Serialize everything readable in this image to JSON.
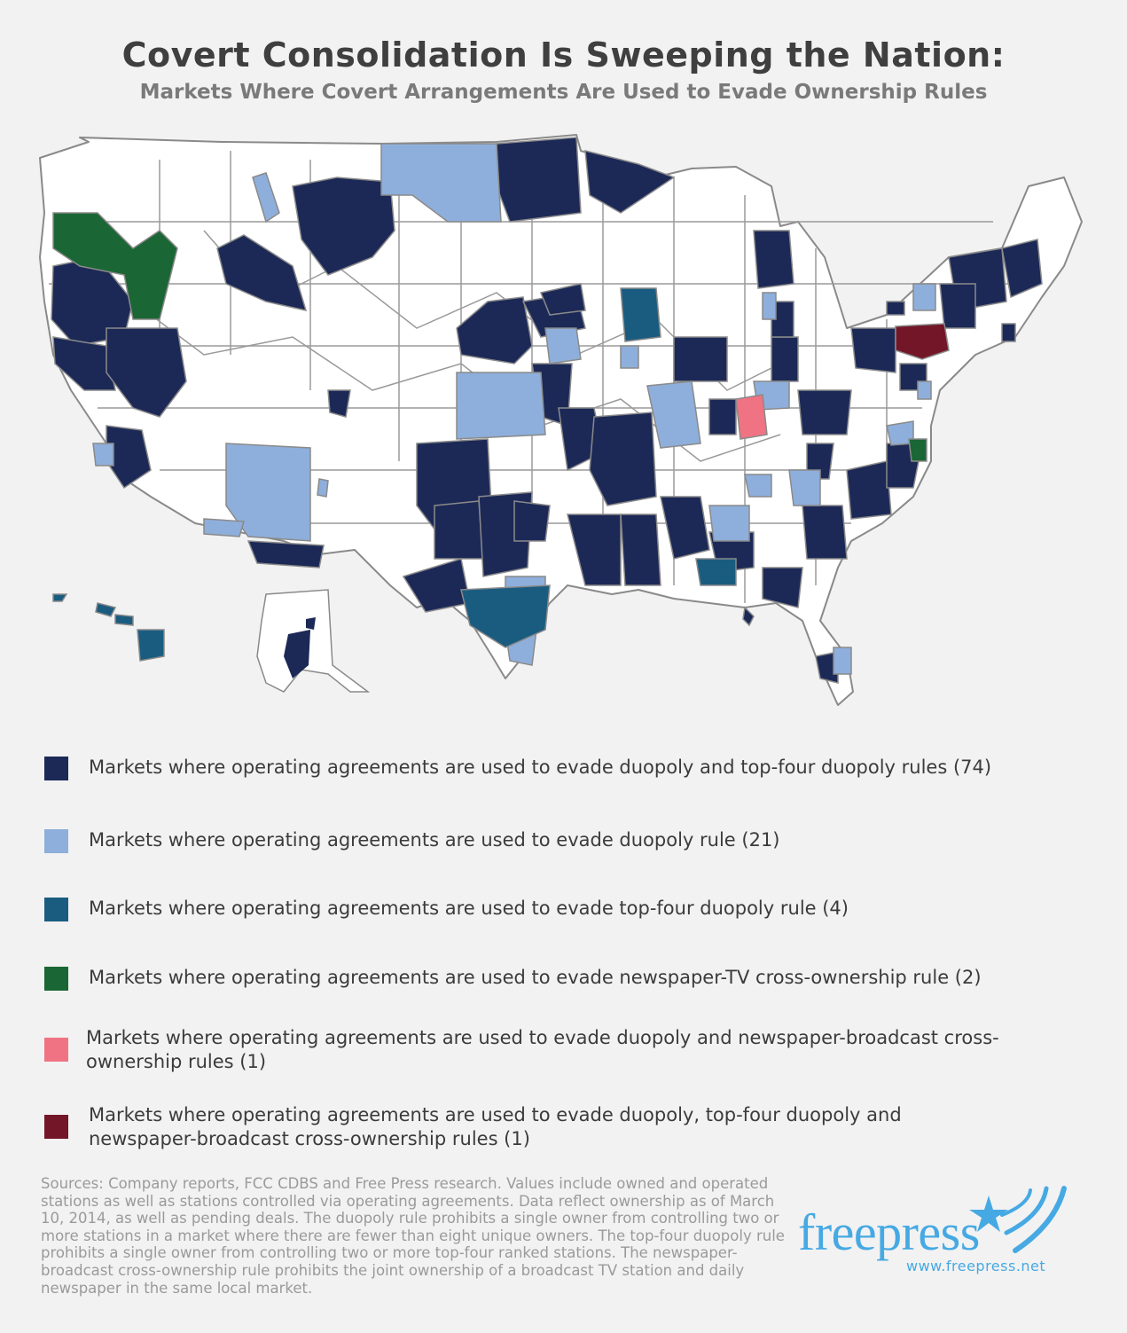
{
  "header": {
    "title": "Covert Consolidation Is Sweeping the Nation:",
    "subtitle": "Markets Where Covert Arrangements Are Used to Evade Ownership Rules"
  },
  "colors": {
    "duopoly_and_top_four": "#1c2957",
    "duopoly": "#8eafdb",
    "top_four": "#1a5c80",
    "newspaper_tv": "#1a6634",
    "duopoly_newspaper": "#ef7382",
    "all_three": "#731628",
    "unhighlighted": "#ffffff",
    "border": "#8a8a8a",
    "brand": "#46a9e3"
  },
  "legend": [
    {
      "label": "Markets where operating agreements are used to evade duopoly and top-four duopoly rules (74)",
      "color": "#1c2957"
    },
    {
      "label": "Markets where operating agreements are used to evade duopoly rule (21)",
      "color": "#8eafdb"
    },
    {
      "label": "Markets where operating agreements are used to evade top-four duopoly rule (4)",
      "color": "#1a5c80"
    },
    {
      "label": "Markets where operating agreements are used to evade newspaper-TV cross-ownership rule (2)",
      "color": "#1a6634"
    },
    {
      "label": "Markets where operating agreements are used to evade duopoly and newspaper-broadcast cross-ownership rules (1)",
      "color": "#ef7382"
    },
    {
      "label": "Markets where operating agreements are used to evade duopoly, top-four duopoly and newspaper-broadcast cross-ownership rules (1)",
      "color": "#731628"
    }
  ],
  "footer": {
    "sources": "Sources: Company reports, FCC CDBS and Free Press research. Values include owned and operated stations as well as stations controlled via operating agreements. Data reflect ownership as of March 10, 2014, as well as pending deals. The duopoly rule prohibits a single owner from controlling two or more stations in a market where there are fewer than eight unique owners. The top-four duopoly rule prohibits a single owner from controlling two or more top-four ranked stations. The newspaper-broadcast cross-ownership rule prohibits the joint ownership of a broadcast TV station and daily newspaper in the same local market.",
    "logo_text": "freepress",
    "logo_url": "www.freepress.net"
  }
}
